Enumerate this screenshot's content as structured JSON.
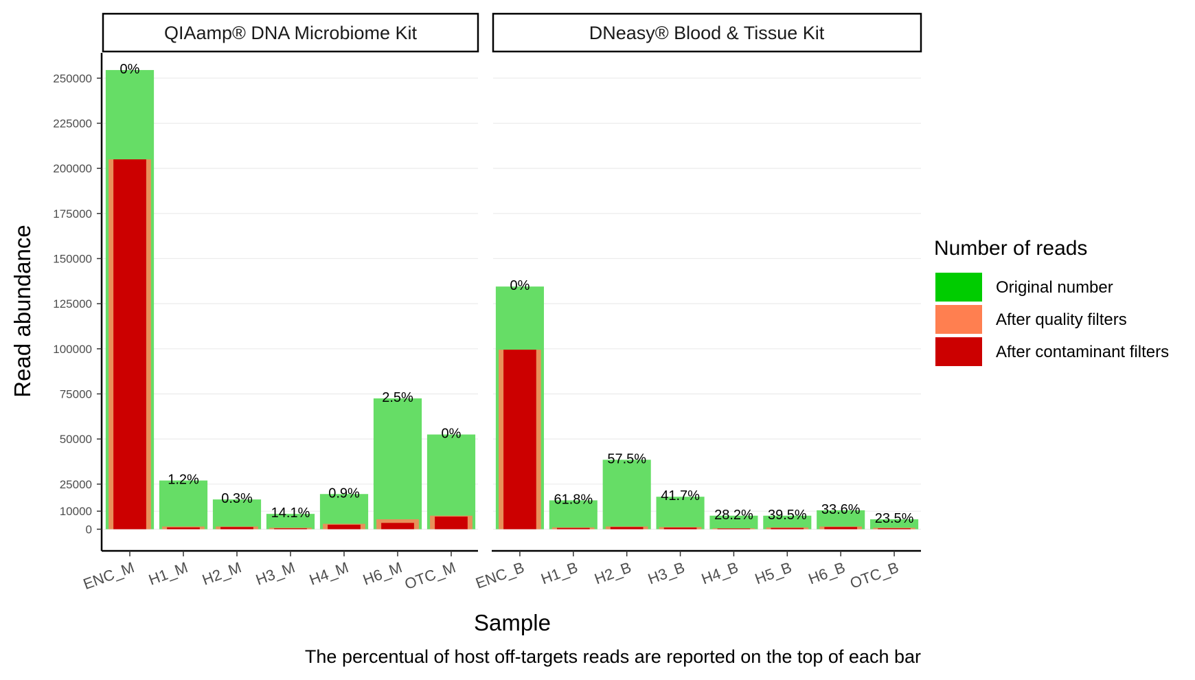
{
  "chart_data": {
    "type": "bar",
    "ylabel": "Read abundance",
    "xlabel": "Sample",
    "caption": "The percentual of host off-targets reads are reported on the top of each bar",
    "yticks": [
      0,
      10000,
      25000,
      50000,
      75000,
      100000,
      125000,
      150000,
      175000,
      200000,
      225000,
      250000
    ],
    "ylim": [
      -12000,
      264000
    ],
    "grid": true,
    "legend": {
      "title": "Number of reads",
      "position": "right",
      "items": [
        {
          "label": "Original number",
          "color": "#00cc00"
        },
        {
          "label": "After quality filters",
          "color": "#ff7f50"
        },
        {
          "label": "After contaminant filters",
          "color": "#cc0000"
        }
      ]
    },
    "colors": {
      "original_bar": "#66dd66",
      "quality_bar": "#e8905a",
      "contaminant_bar": "#cc0000"
    },
    "panels": [
      {
        "title": "QIAamp® DNA Microbiome Kit",
        "categories": [
          "ENC_M",
          "H1_M",
          "H2_M",
          "H3_M",
          "H4_M",
          "H6_M",
          "OTC_M"
        ],
        "series": [
          {
            "name": "Original number",
            "values": [
              254500,
              27000,
              16500,
              8500,
              19500,
              72500,
              52500
            ]
          },
          {
            "name": "After quality filters",
            "values": [
              205000,
              1500,
              1500,
              800,
              3000,
              5500,
              7500
            ]
          },
          {
            "name": "After contaminant filters",
            "values": [
              205000,
              1000,
              1200,
              500,
              2500,
              3500,
              7000
            ]
          }
        ],
        "labels": [
          "0%",
          "1.2%",
          "0.3%",
          "14.1%",
          "0.9%",
          "2.5%",
          "0%"
        ]
      },
      {
        "title": "DNeasy® Blood & Tissue Kit",
        "categories": [
          "ENC_B",
          "H1_B",
          "H2_B",
          "H3_B",
          "H4_B",
          "H5_B",
          "H6_B",
          "OTC_B"
        ],
        "series": [
          {
            "name": "Original number",
            "values": [
              134500,
              16000,
              38500,
              18000,
              7500,
              7500,
              10500,
              5500
            ]
          },
          {
            "name": "After quality filters",
            "values": [
              99500,
              1000,
              1500,
              1200,
              500,
              1000,
              1500,
              800
            ]
          },
          {
            "name": "After contaminant filters",
            "values": [
              99500,
              700,
              1200,
              900,
              400,
              700,
              1200,
              500
            ]
          }
        ],
        "labels": [
          "0%",
          "61.8%",
          "57.5%",
          "41.7%",
          "28.2%",
          "39.5%",
          "33.6%",
          "23.5%"
        ]
      }
    ]
  }
}
